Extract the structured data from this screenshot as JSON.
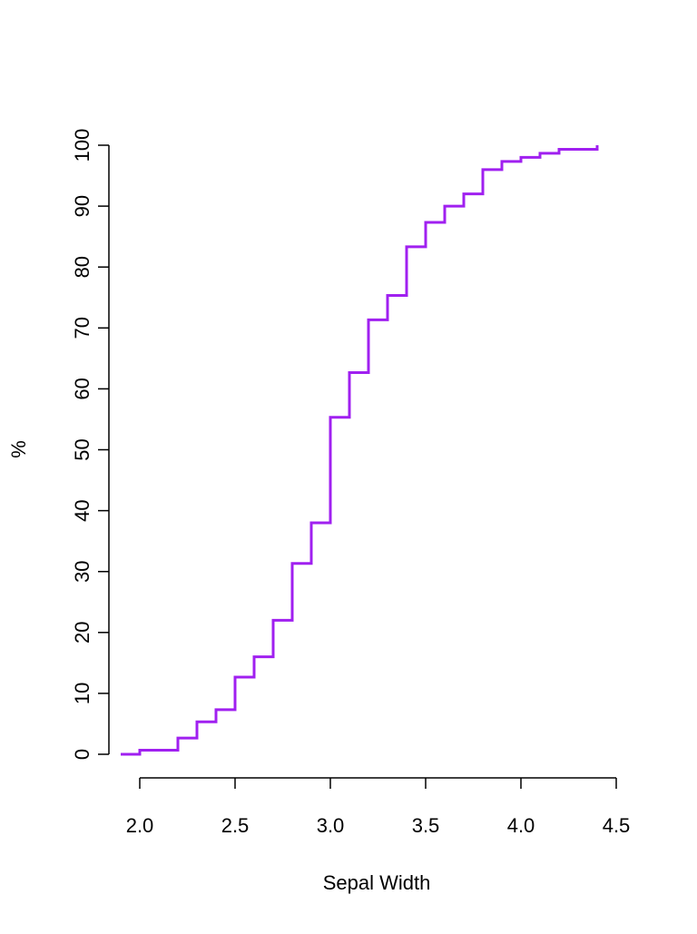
{
  "chart_data": {
    "type": "step",
    "x_label": "Sepal Width",
    "y_label": "%",
    "x": [
      1.9,
      2.0,
      2.2,
      2.3,
      2.4,
      2.5,
      2.6,
      2.7,
      2.8,
      2.9,
      3.0,
      3.1,
      3.2,
      3.3,
      3.4,
      3.5,
      3.6,
      3.7,
      3.8,
      3.9,
      4.0,
      4.1,
      4.2,
      4.4
    ],
    "series": [
      {
        "color": "#a020f0",
        "values": [
          0,
          0.67,
          2.67,
          5.33,
          7.33,
          12.67,
          16,
          22,
          31.33,
          38,
          55.33,
          62.67,
          71.33,
          75.33,
          83.33,
          87.33,
          90,
          92,
          96,
          97.33,
          98,
          98.67,
          99.33,
          100
        ]
      }
    ],
    "xlim": [
      1.9,
      4.4
    ],
    "xticks": [
      {
        "value": 2.0,
        "label": "2.0"
      },
      {
        "value": 2.5,
        "label": "2.5"
      },
      {
        "value": 3.0,
        "label": "3.0"
      },
      {
        "value": 3.5,
        "label": "3.5"
      },
      {
        "value": 4.0,
        "label": "4.0"
      },
      {
        "value": 4.5,
        "label": "4.5"
      }
    ],
    "ylim": [
      0,
      100
    ],
    "yticks": [
      0,
      10,
      20,
      30,
      40,
      50,
      60,
      70,
      80,
      90,
      100
    ]
  }
}
